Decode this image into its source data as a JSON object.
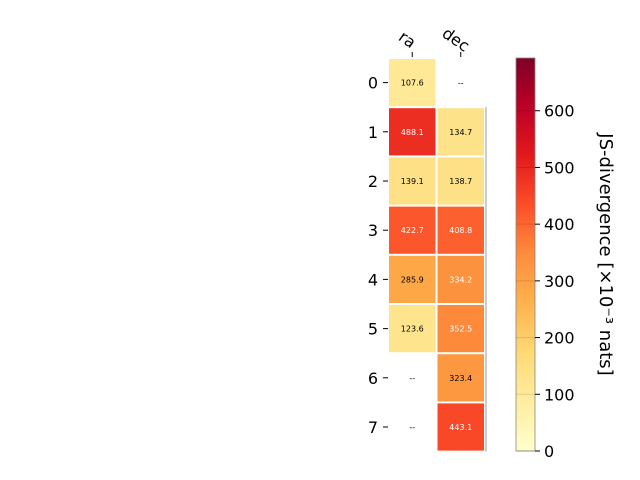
{
  "chart_data": {
    "type": "heatmap",
    "columns": [
      "ra",
      "dec"
    ],
    "rows": [
      "0",
      "1",
      "2",
      "3",
      "4",
      "5",
      "6",
      "7"
    ],
    "values": [
      [
        107.6,
        null
      ],
      [
        488.1,
        134.7
      ],
      [
        139.1,
        138.7
      ],
      [
        422.7,
        408.8
      ],
      [
        285.9,
        334.2
      ],
      [
        123.6,
        352.5
      ],
      [
        null,
        323.4
      ],
      [
        null,
        443.1
      ]
    ],
    "missing_label": "--",
    "colorbar": {
      "label": "JS-divergence [×10⁻³ nats]",
      "min": 0,
      "max": 693,
      "ticks": [
        0,
        100,
        200,
        300,
        400,
        500,
        600
      ]
    },
    "colormap": [
      "#ffffcc",
      "#ffeda0",
      "#fed976",
      "#feb24c",
      "#fd8d3c",
      "#fc4e2a",
      "#e31a1c",
      "#bd0026",
      "#800026"
    ]
  }
}
